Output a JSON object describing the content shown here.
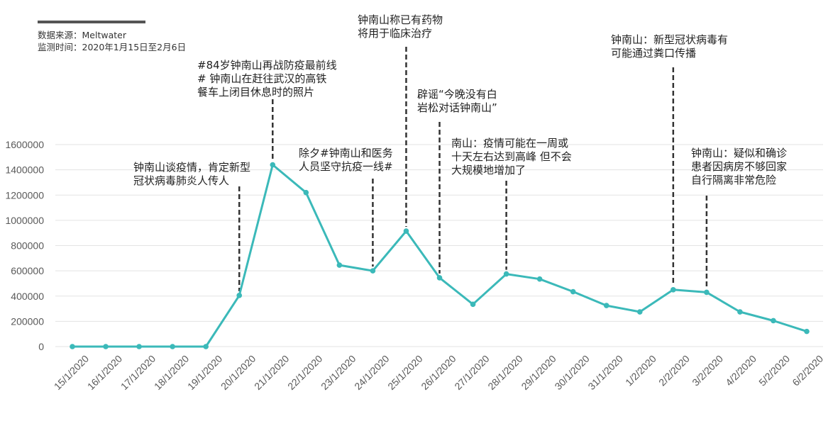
{
  "source": {
    "line1": "数据来源：Meltwater",
    "line2": "监测时间：2020年1月15日至2月6日"
  },
  "colors": {
    "series": "#3BB9B9",
    "grid": "#E3E3E3",
    "tick_text": "#595959",
    "annotation_line": "#333333",
    "header_bar": "#555555"
  },
  "chart_data": {
    "type": "line",
    "title": "",
    "xlabel": "",
    "ylabel": "",
    "ylim": [
      0,
      1600000
    ],
    "y_ticks": [
      0,
      200000,
      400000,
      600000,
      800000,
      1000000,
      1200000,
      1400000,
      1600000
    ],
    "y_tick_labels": [
      "0",
      "200000",
      "400000",
      "600000",
      "800000",
      "1000000",
      "1200000",
      "1400000",
      "1600000"
    ],
    "grid": true,
    "legend": "none",
    "categories": [
      "15/1/2020",
      "16/1/2020",
      "17/1/2020",
      "18/1/2020",
      "19/1/2020",
      "20/1/2020",
      "21/1/2020",
      "22/1/2020",
      "23/1/2020",
      "24/1/2020",
      "25/1/2020",
      "26/1/2020",
      "27/1/2020",
      "28/1/2020",
      "29/1/2020",
      "30/1/2020",
      "31/1/2020",
      "1/2/2020",
      "2/2/2020",
      "3/2/2020",
      "4/2/2020",
      "5/2/2020",
      "6/2/2020"
    ],
    "series": [
      {
        "values": [
          0,
          0,
          0,
          0,
          0,
          405000,
          1440000,
          1220000,
          645000,
          600000,
          915000,
          545000,
          335000,
          575000,
          535000,
          435000,
          325000,
          275000,
          450000,
          430000,
          275000,
          205000,
          120000
        ]
      }
    ],
    "annotations": [
      {
        "category": "20/1/2020",
        "lines": [
          "钟南山谈疫情，肯定新型",
          "冠状病毒肺炎人传人"
        ]
      },
      {
        "category": "21/1/2020",
        "lines": [
          "#84岁钟南山再战防疫最前线",
          "# 钟南山在赶往武汉的高铁",
          "餐车上闭目休息时的照片"
        ]
      },
      {
        "category": "24/1/2020",
        "lines": [
          "除夕#钟南山和医务",
          "人员坚守抗疫一线#"
        ]
      },
      {
        "category": "25/1/2020",
        "lines": [
          "钟南山称已有药物",
          "将用于临床治疗"
        ]
      },
      {
        "category": "26/1/2020",
        "lines": [
          "辟谣“今晚没有白",
          "岩松对话钟南山”"
        ]
      },
      {
        "category": "28/1/2020",
        "lines": [
          "南山：疫情可能在一周或",
          "十天左右达到高峰 但不会",
          "大规模地增加了"
        ]
      },
      {
        "category": "2/2/2020",
        "lines": [
          "钟南山：新型冠状病毒有",
          "可能通过粪口传播"
        ]
      },
      {
        "category": "3/2/2020",
        "lines": [
          "钟南山：疑似和确诊",
          "患者因病房不够回家",
          "自行隔离非常危险"
        ]
      }
    ]
  }
}
